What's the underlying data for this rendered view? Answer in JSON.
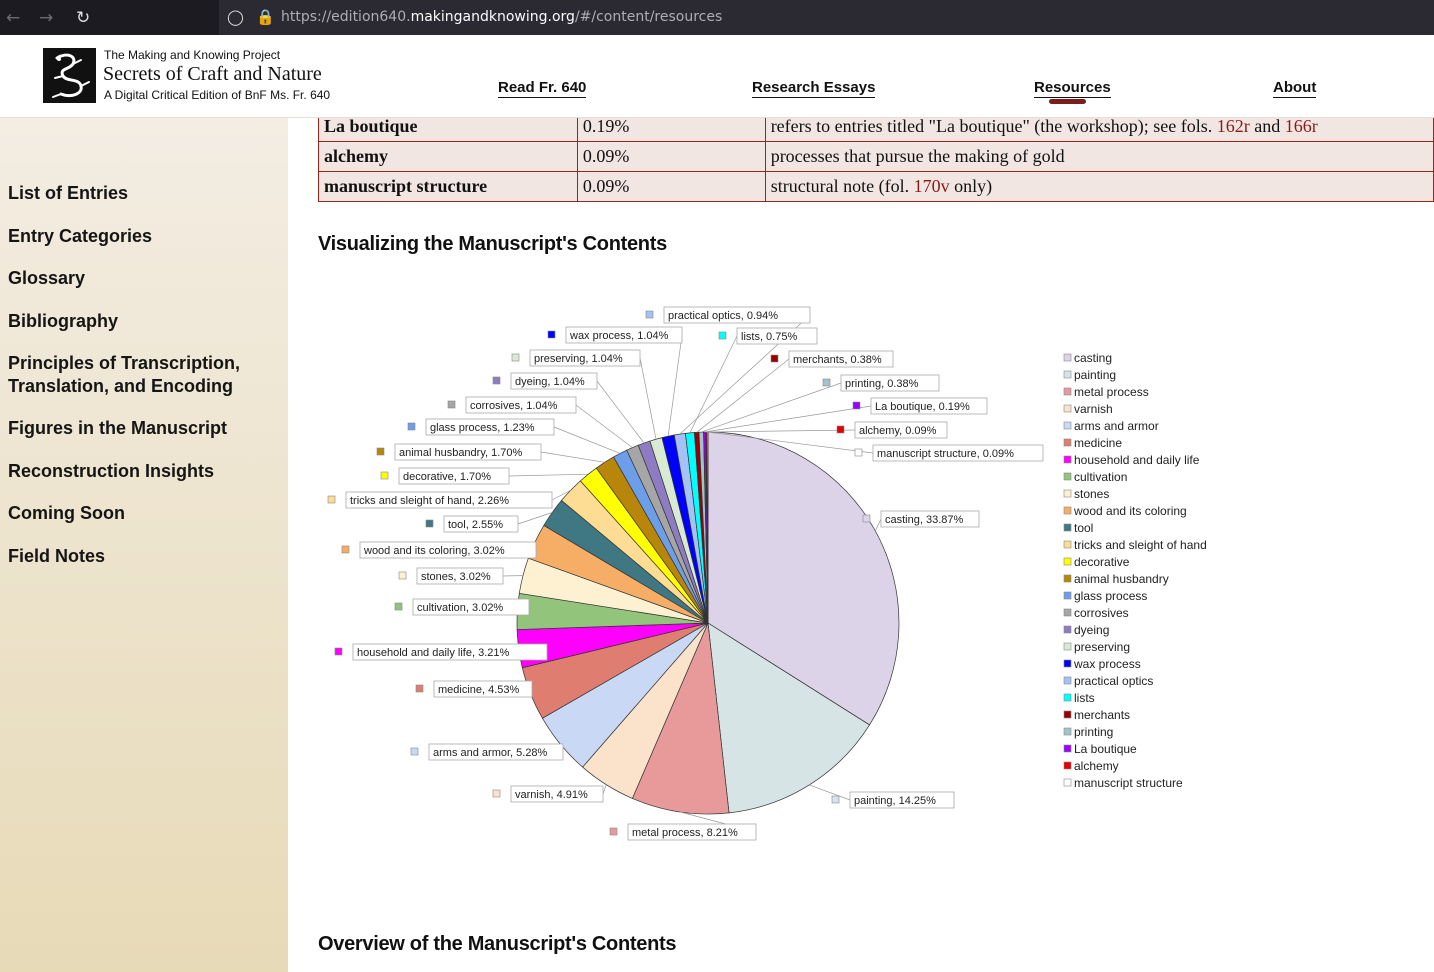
{
  "browser": {
    "back_icon": "back-arrow-icon",
    "forward_icon": "forward-arrow-icon",
    "reload_icon": "reload-icon",
    "url_prefix": "https://edition640.",
    "url_host": "makingandknowing.org",
    "url_path": "/#/content/resources"
  },
  "header": {
    "logo_icon": "dragon-logo-icon",
    "pre_title": "The Making and Knowing Project",
    "title": "Secrets of Craft and Nature",
    "subtitle": "A Digital Critical Edition of BnF Ms. Fr. 640",
    "nav": [
      "Read Fr. 640",
      "Research Essays",
      "Resources",
      "About"
    ],
    "active_nav": "Resources"
  },
  "sidebar": {
    "items": [
      "List of Entries",
      "Entry Categories",
      "Glossary",
      "Bibliography",
      "Principles of Transcription,",
      "Translation, and Encoding",
      "Figures in the Manuscript",
      "Reconstruction Insights",
      "Coming Soon",
      "Field Notes"
    ]
  },
  "table": {
    "rows": [
      {
        "category": "La boutique",
        "percent": "0.19%",
        "desc_pre": "refers to entries titled \"La boutique\" (the workshop); see fols. ",
        "link1": "162r",
        "desc_mid": " and ",
        "link2": "166r",
        "desc_post": ""
      },
      {
        "category": "alchemy",
        "percent": "0.09%",
        "desc_pre": "processes that pursue the making of gold",
        "link1": "",
        "desc_mid": "",
        "link2": "",
        "desc_post": ""
      },
      {
        "category": "manuscript structure",
        "percent": "0.09%",
        "desc_pre": "structural note (fol. ",
        "link1": "170v",
        "desc_mid": "",
        "link2": "",
        "desc_post": " only)"
      }
    ]
  },
  "sections": {
    "visualizing": "Visualizing the Manuscript's Contents",
    "overview": "Overview of the Manuscript's Contents"
  },
  "chart_data": {
    "type": "pie",
    "title": "",
    "legend_position": "right",
    "slices": [
      {
        "label": "casting",
        "value": 33.87,
        "color": "#dcd3e8",
        "display": "33.87%"
      },
      {
        "label": "painting",
        "value": 14.25,
        "color": "#d6e4e6",
        "display": "14.25%"
      },
      {
        "label": "metal process",
        "value": 8.21,
        "color": "#e89a9a",
        "display": "8.21%"
      },
      {
        "label": "varnish",
        "value": 4.91,
        "color": "#fbe2cb",
        "display": "4.91%"
      },
      {
        "label": "arms and armor",
        "value": 5.28,
        "color": "#c9d9f5",
        "display": "5.28%"
      },
      {
        "label": "medicine",
        "value": 4.53,
        "color": "#df7d70",
        "display": "4.53%"
      },
      {
        "label": "household and daily life",
        "value": 3.21,
        "color": "#ff00ff",
        "display": "3.21%"
      },
      {
        "label": "cultivation",
        "value": 3.02,
        "color": "#92c47c",
        "display": "3.02%"
      },
      {
        "label": "stones",
        "value": 3.02,
        "color": "#fdf1d2",
        "display": "3.02%"
      },
      {
        "label": "wood and its coloring",
        "value": 3.02,
        "color": "#f6ae67",
        "display": "3.02%"
      },
      {
        "label": "tool",
        "value": 2.55,
        "color": "#3f7883",
        "display": "2.55%"
      },
      {
        "label": "tricks and sleight of hand",
        "value": 2.26,
        "color": "#fddc94",
        "display": "2.26%"
      },
      {
        "label": "decorative",
        "value": 1.7,
        "color": "#ffff00",
        "display": "1.70%"
      },
      {
        "label": "animal husbandry",
        "value": 1.7,
        "color": "#b8860b",
        "display": "1.70%"
      },
      {
        "label": "glass process",
        "value": 1.23,
        "color": "#6d9ee8",
        "display": "1.23%"
      },
      {
        "label": "corrosives",
        "value": 1.04,
        "color": "#a6a6a6",
        "display": "1.04%"
      },
      {
        "label": "dyeing",
        "value": 1.04,
        "color": "#8e7cc3",
        "display": "1.04%"
      },
      {
        "label": "preserving",
        "value": 1.04,
        "color": "#d9ead3",
        "display": "1.04%"
      },
      {
        "label": "wax process",
        "value": 1.04,
        "color": "#0000ff",
        "display": "1.04%"
      },
      {
        "label": "practical optics",
        "value": 0.94,
        "color": "#a4c2f4",
        "display": "0.94%"
      },
      {
        "label": "lists",
        "value": 0.75,
        "color": "#00ffff",
        "display": "0.75%"
      },
      {
        "label": "merchants",
        "value": 0.38,
        "color": "#990000",
        "display": "0.38%"
      },
      {
        "label": "printing",
        "value": 0.38,
        "color": "#a2c4c9",
        "display": "0.38%"
      },
      {
        "label": "La boutique",
        "value": 0.19,
        "color": "#9900ff",
        "display": "0.19%"
      },
      {
        "label": "alchemy",
        "value": 0.09,
        "color": "#e60000",
        "display": "0.09%"
      },
      {
        "label": "manuscript structure",
        "value": 0.09,
        "color": "#ffffff",
        "display": "0.09%"
      }
    ],
    "legend": [
      "casting",
      "painting",
      "metal process",
      "varnish",
      "arms and armor",
      "medicine",
      "household and daily life",
      "cultivation",
      "stones",
      "wood and its coloring",
      "tool",
      "tricks and sleight of hand",
      "decorative",
      "animal husbandry",
      "glass process",
      "corrosives",
      "dyeing",
      "preserving",
      "wax process",
      "practical optics",
      "lists",
      "merchants",
      "printing",
      "La boutique",
      "alchemy",
      "manuscript structure"
    ]
  }
}
